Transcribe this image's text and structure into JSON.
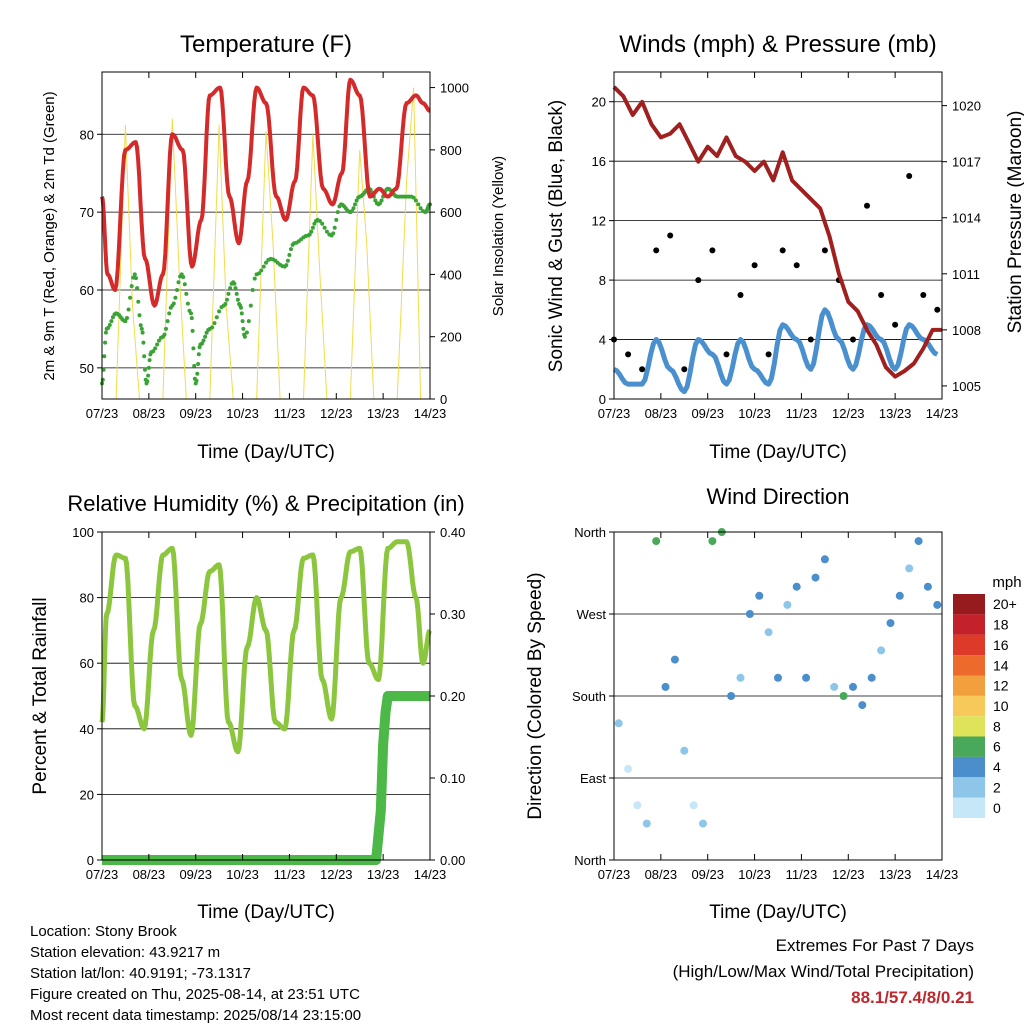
{
  "panels": {
    "temperature": {
      "title": "Temperature (F)",
      "xlabel": "Time (Day/UTC)",
      "ylabel_left": "2m & 9m T (Red, Orange) & 2m Td (Green)",
      "ylabel_right": "Solar Insolation (Yellow)",
      "yticks_left": [
        "50",
        "60",
        "70",
        "80"
      ],
      "yticks_right": [
        "0",
        "200",
        "400",
        "600",
        "800",
        "1000"
      ]
    },
    "winds": {
      "title": "Winds (mph) & Pressure (mb)",
      "xlabel": "Time (Day/UTC)",
      "ylabel_left": "Sonic Wind & Gust (Blue, Black)",
      "ylabel_right": "Station Pressure (Maroon)",
      "yticks_left": [
        "0",
        "4",
        "8",
        "12",
        "16",
        "20"
      ],
      "yticks_right": [
        "1005",
        "1008",
        "1011",
        "1014",
        "1017",
        "1020"
      ]
    },
    "humidity": {
      "title": "Relative Humidity (%) & Precipitation (in)",
      "xlabel": "Time (Day/UTC)",
      "ylabel_left": "Percent & Total Rainfall",
      "yticks_left": [
        "0",
        "20",
        "40",
        "60",
        "80",
        "100"
      ],
      "yticks_right": [
        "0.00",
        "0.10",
        "0.20",
        "0.30",
        "0.40"
      ]
    },
    "direction": {
      "title": "Wind Direction",
      "xlabel": "Time (Day/UTC)",
      "ylabel_left": "Direction (Colored By Speed)",
      "yticks_left": [
        "North",
        "East",
        "South",
        "West",
        "North"
      ],
      "legend_title": "mph",
      "legend_labels": [
        "0",
        "2",
        "4",
        "6",
        "8",
        "10",
        "12",
        "14",
        "16",
        "18",
        "20+"
      ],
      "legend_colors": [
        "#c6e7f7",
        "#8ec6ea",
        "#4a8fcb",
        "#4aa85a",
        "#dfe35a",
        "#f7c85a",
        "#f2a03d",
        "#ec6a2c",
        "#dd3a2a",
        "#c4222a",
        "#961b1e"
      ]
    }
  },
  "xticks": [
    "07/23",
    "08/23",
    "09/23",
    "10/23",
    "11/23",
    "12/23",
    "13/23",
    "14/23"
  ],
  "info": {
    "location": "Location: Stony Brook",
    "elevation": "Station elevation: 43.9217 m",
    "latlon": "Station lat/lon: 40.9191; -73.1317",
    "created": "Figure created on Thu, 2025-08-14, at 23:51 UTC",
    "recent": "Most recent data timestamp: 2025/08/14 23:15:00"
  },
  "extremes": {
    "title": "Extremes For Past 7 Days",
    "subtitle": "(High/Low/Max Wind/Total Precipitation)",
    "value": "88.1/57.4/8/0.21"
  },
  "chart_data": [
    {
      "type": "line",
      "title": "Temperature (F)",
      "xlabel": "Time (Day/UTC)",
      "ylabel": "2m & 9m T (Red, Orange) & 2m Td (Green)",
      "ylabel_right": "Solar Insolation (Yellow)",
      "xlim": [
        0,
        7
      ],
      "ylim": [
        46,
        88
      ],
      "ylim_right": [
        0,
        1050
      ],
      "series": [
        {
          "name": "2m & 9m T (Red, Orange)",
          "color": "#d42a2a",
          "x": [
            0,
            0.12,
            0.28,
            0.5,
            0.72,
            0.92,
            1.12,
            1.3,
            1.5,
            1.72,
            1.92,
            2.12,
            2.3,
            2.52,
            2.72,
            2.92,
            3.1,
            3.3,
            3.5,
            3.72,
            3.92,
            4.12,
            4.3,
            4.5,
            4.72,
            4.92,
            5.12,
            5.3,
            5.5,
            5.72,
            5.92,
            6.1,
            6.28,
            6.5,
            6.7,
            6.85,
            7.0
          ],
          "y": [
            72,
            62,
            60,
            78,
            79,
            64,
            58,
            62,
            80,
            78,
            63,
            69,
            85,
            86,
            72,
            66,
            74,
            86,
            84,
            72,
            69,
            74,
            86,
            85,
            73,
            71,
            75,
            87,
            85,
            72,
            73,
            72,
            73,
            84,
            85,
            84,
            83
          ]
        },
        {
          "name": "2m Td (Green)",
          "color": "#3aa335",
          "x": [
            0,
            0.1,
            0.3,
            0.5,
            0.7,
            0.85,
            0.95,
            1.05,
            1.3,
            1.5,
            1.7,
            1.9,
            2.0,
            2.1,
            2.3,
            2.6,
            2.8,
            2.95,
            3.05,
            3.3,
            3.6,
            3.9,
            4.1,
            4.4,
            4.6,
            4.9,
            5.1,
            5.3,
            5.5,
            5.7,
            5.9,
            6.1,
            6.3,
            6.6,
            6.9,
            7.0
          ],
          "y": [
            48,
            55,
            57,
            56,
            62,
            55,
            48,
            52,
            54,
            58,
            62,
            57,
            48,
            53,
            55,
            58,
            61,
            58,
            54,
            62,
            64,
            63,
            66,
            67,
            69,
            67,
            71,
            70,
            72,
            73,
            71,
            73,
            72,
            72,
            70,
            71
          ]
        },
        {
          "name": "Solar Insolation (Yellow)",
          "color": "#f1dc4a",
          "axis": "right",
          "x": [
            0.3,
            0.5,
            0.65,
            0.8,
            1.3,
            1.5,
            1.65,
            1.8,
            2.3,
            2.5,
            2.65,
            2.8,
            3.3,
            3.5,
            3.65,
            3.8,
            4.3,
            4.5,
            4.65,
            4.8,
            5.3,
            5.5,
            5.65,
            5.8,
            6.3,
            6.5,
            6.65,
            6.8
          ],
          "y": [
            0,
            880,
            300,
            0,
            0,
            900,
            400,
            0,
            0,
            880,
            300,
            0,
            0,
            860,
            500,
            0,
            0,
            850,
            400,
            0,
            0,
            800,
            500,
            0,
            0,
            700,
            1000,
            0
          ]
        }
      ]
    },
    {
      "type": "scatter",
      "title": "Winds (mph) & Pressure (mb)",
      "xlabel": "Time (Day/UTC)",
      "ylabel": "Sonic Wind & Gust (Blue, Black)",
      "ylabel_right": "Station Pressure (Maroon)",
      "xlim": [
        0,
        7
      ],
      "ylim": [
        0,
        22
      ],
      "ylim_right": [
        1004.3,
        1021.8
      ],
      "series": [
        {
          "name": "Sonic Wind (Blue)",
          "color": "#4a90cf",
          "x": [
            0,
            0.3,
            0.6,
            0.9,
            1.2,
            1.5,
            1.8,
            2.1,
            2.4,
            2.7,
            3.0,
            3.3,
            3.6,
            3.9,
            4.2,
            4.5,
            4.8,
            5.1,
            5.4,
            5.7,
            6.0,
            6.3,
            6.6,
            6.9
          ],
          "y": [
            2,
            1,
            1,
            4,
            2,
            0.5,
            4,
            3,
            1,
            4,
            2,
            1,
            5,
            4,
            2,
            6,
            4,
            2,
            5,
            4,
            2,
            5,
            4,
            3
          ]
        },
        {
          "name": "Gust (Black)",
          "color": "#000000",
          "x": [
            0,
            0.3,
            0.6,
            0.9,
            1.2,
            1.5,
            1.8,
            2.1,
            2.4,
            2.7,
            3.0,
            3.3,
            3.6,
            3.9,
            4.2,
            4.5,
            4.8,
            5.1,
            5.4,
            5.7,
            6.0,
            6.3,
            6.6,
            6.9
          ],
          "y": [
            4,
            3,
            2,
            10,
            11,
            2,
            8,
            10,
            3,
            7,
            9,
            3,
            10,
            9,
            4,
            10,
            8,
            4,
            13,
            7,
            5,
            15,
            7,
            6
          ]
        },
        {
          "name": "Station Pressure (Maroon)",
          "color": "#a01f1f",
          "axis": "right",
          "x": [
            0,
            0.2,
            0.4,
            0.6,
            0.8,
            1.0,
            1.2,
            1.4,
            1.6,
            1.8,
            2.0,
            2.2,
            2.4,
            2.6,
            2.8,
            3.0,
            3.2,
            3.4,
            3.6,
            3.8,
            4.0,
            4.2,
            4.4,
            4.6,
            4.8,
            5.0,
            5.2,
            5.4,
            5.6,
            5.8,
            6.0,
            6.2,
            6.4,
            6.6,
            6.8,
            7.0
          ],
          "y": [
            1021,
            1020.5,
            1019.5,
            1020.2,
            1019,
            1018.3,
            1018.5,
            1019,
            1018,
            1017,
            1017.8,
            1017.3,
            1018.3,
            1017.3,
            1017,
            1016.5,
            1017,
            1016,
            1017.5,
            1016,
            1015.5,
            1015,
            1014.5,
            1013,
            1011,
            1009.5,
            1009,
            1008,
            1007.2,
            1006,
            1005.5,
            1005.8,
            1006.2,
            1007,
            1008,
            1008
          ]
        }
      ]
    },
    {
      "type": "line",
      "title": "Relative Humidity (%) & Precipitation (in)",
      "xlabel": "Time (Day/UTC)",
      "ylabel": "Percent & Total Rainfall",
      "xlim": [
        0,
        7
      ],
      "ylim": [
        0,
        100
      ],
      "ylim_right": [
        0,
        0.4
      ],
      "series": [
        {
          "name": "Relative Humidity",
          "color": "#8cc63f",
          "x": [
            0,
            0.1,
            0.3,
            0.5,
            0.7,
            0.9,
            1.1,
            1.3,
            1.5,
            1.7,
            1.9,
            2.1,
            2.3,
            2.5,
            2.7,
            2.9,
            3.1,
            3.3,
            3.5,
            3.7,
            3.9,
            4.1,
            4.3,
            4.5,
            4.7,
            4.9,
            5.1,
            5.3,
            5.5,
            5.7,
            5.9,
            6.1,
            6.3,
            6.5,
            6.7,
            6.85,
            7.0
          ],
          "y": [
            42,
            75,
            93,
            92,
            47,
            40,
            70,
            93,
            95,
            55,
            38,
            72,
            88,
            90,
            42,
            33,
            65,
            80,
            70,
            42,
            40,
            70,
            92,
            93,
            55,
            43,
            80,
            94,
            95,
            60,
            55,
            95,
            97,
            97,
            80,
            60,
            70
          ]
        },
        {
          "name": "Total Rainfall",
          "color": "#4cb848",
          "axis": "right",
          "x": [
            0,
            5.0,
            5.6,
            5.85,
            5.95,
            6.0,
            6.05,
            6.1,
            6.2,
            6.5,
            7.0
          ],
          "y": [
            0,
            0,
            0,
            0,
            0.06,
            0.14,
            0.18,
            0.2,
            0.2,
            0.2,
            0.2
          ]
        }
      ]
    },
    {
      "type": "scatter",
      "title": "Wind Direction",
      "xlabel": "Time (Day/UTC)",
      "ylabel": "Direction (Colored By Speed)",
      "xlim": [
        0,
        7
      ],
      "ylim": [
        0,
        360
      ],
      "series": [
        {
          "name": "Direction",
          "x": [
            0.1,
            0.3,
            0.5,
            0.7,
            0.9,
            1.1,
            1.3,
            1.5,
            1.7,
            1.9,
            2.1,
            2.3,
            2.5,
            2.7,
            2.9,
            3.1,
            3.3,
            3.5,
            3.7,
            3.9,
            4.1,
            4.3,
            4.5,
            4.7,
            4.9,
            5.1,
            5.3,
            5.5,
            5.7,
            5.9,
            6.1,
            6.3,
            6.5,
            6.7,
            6.9
          ],
          "y": [
            150,
            100,
            60,
            40,
            350,
            190,
            220,
            120,
            60,
            40,
            350,
            360,
            180,
            200,
            270,
            290,
            250,
            200,
            280,
            300,
            200,
            310,
            330,
            190,
            180,
            190,
            170,
            200,
            230,
            260,
            290,
            320,
            350,
            300,
            280
          ],
          "speed": [
            2,
            1,
            1,
            2,
            6,
            4,
            5,
            2,
            1,
            2,
            6,
            6,
            4,
            3,
            4,
            4,
            3,
            4,
            3,
            5,
            4,
            4,
            5,
            3,
            6,
            4,
            4,
            5,
            3,
            4,
            4,
            2,
            4,
            5,
            4
          ]
        }
      ]
    }
  ]
}
